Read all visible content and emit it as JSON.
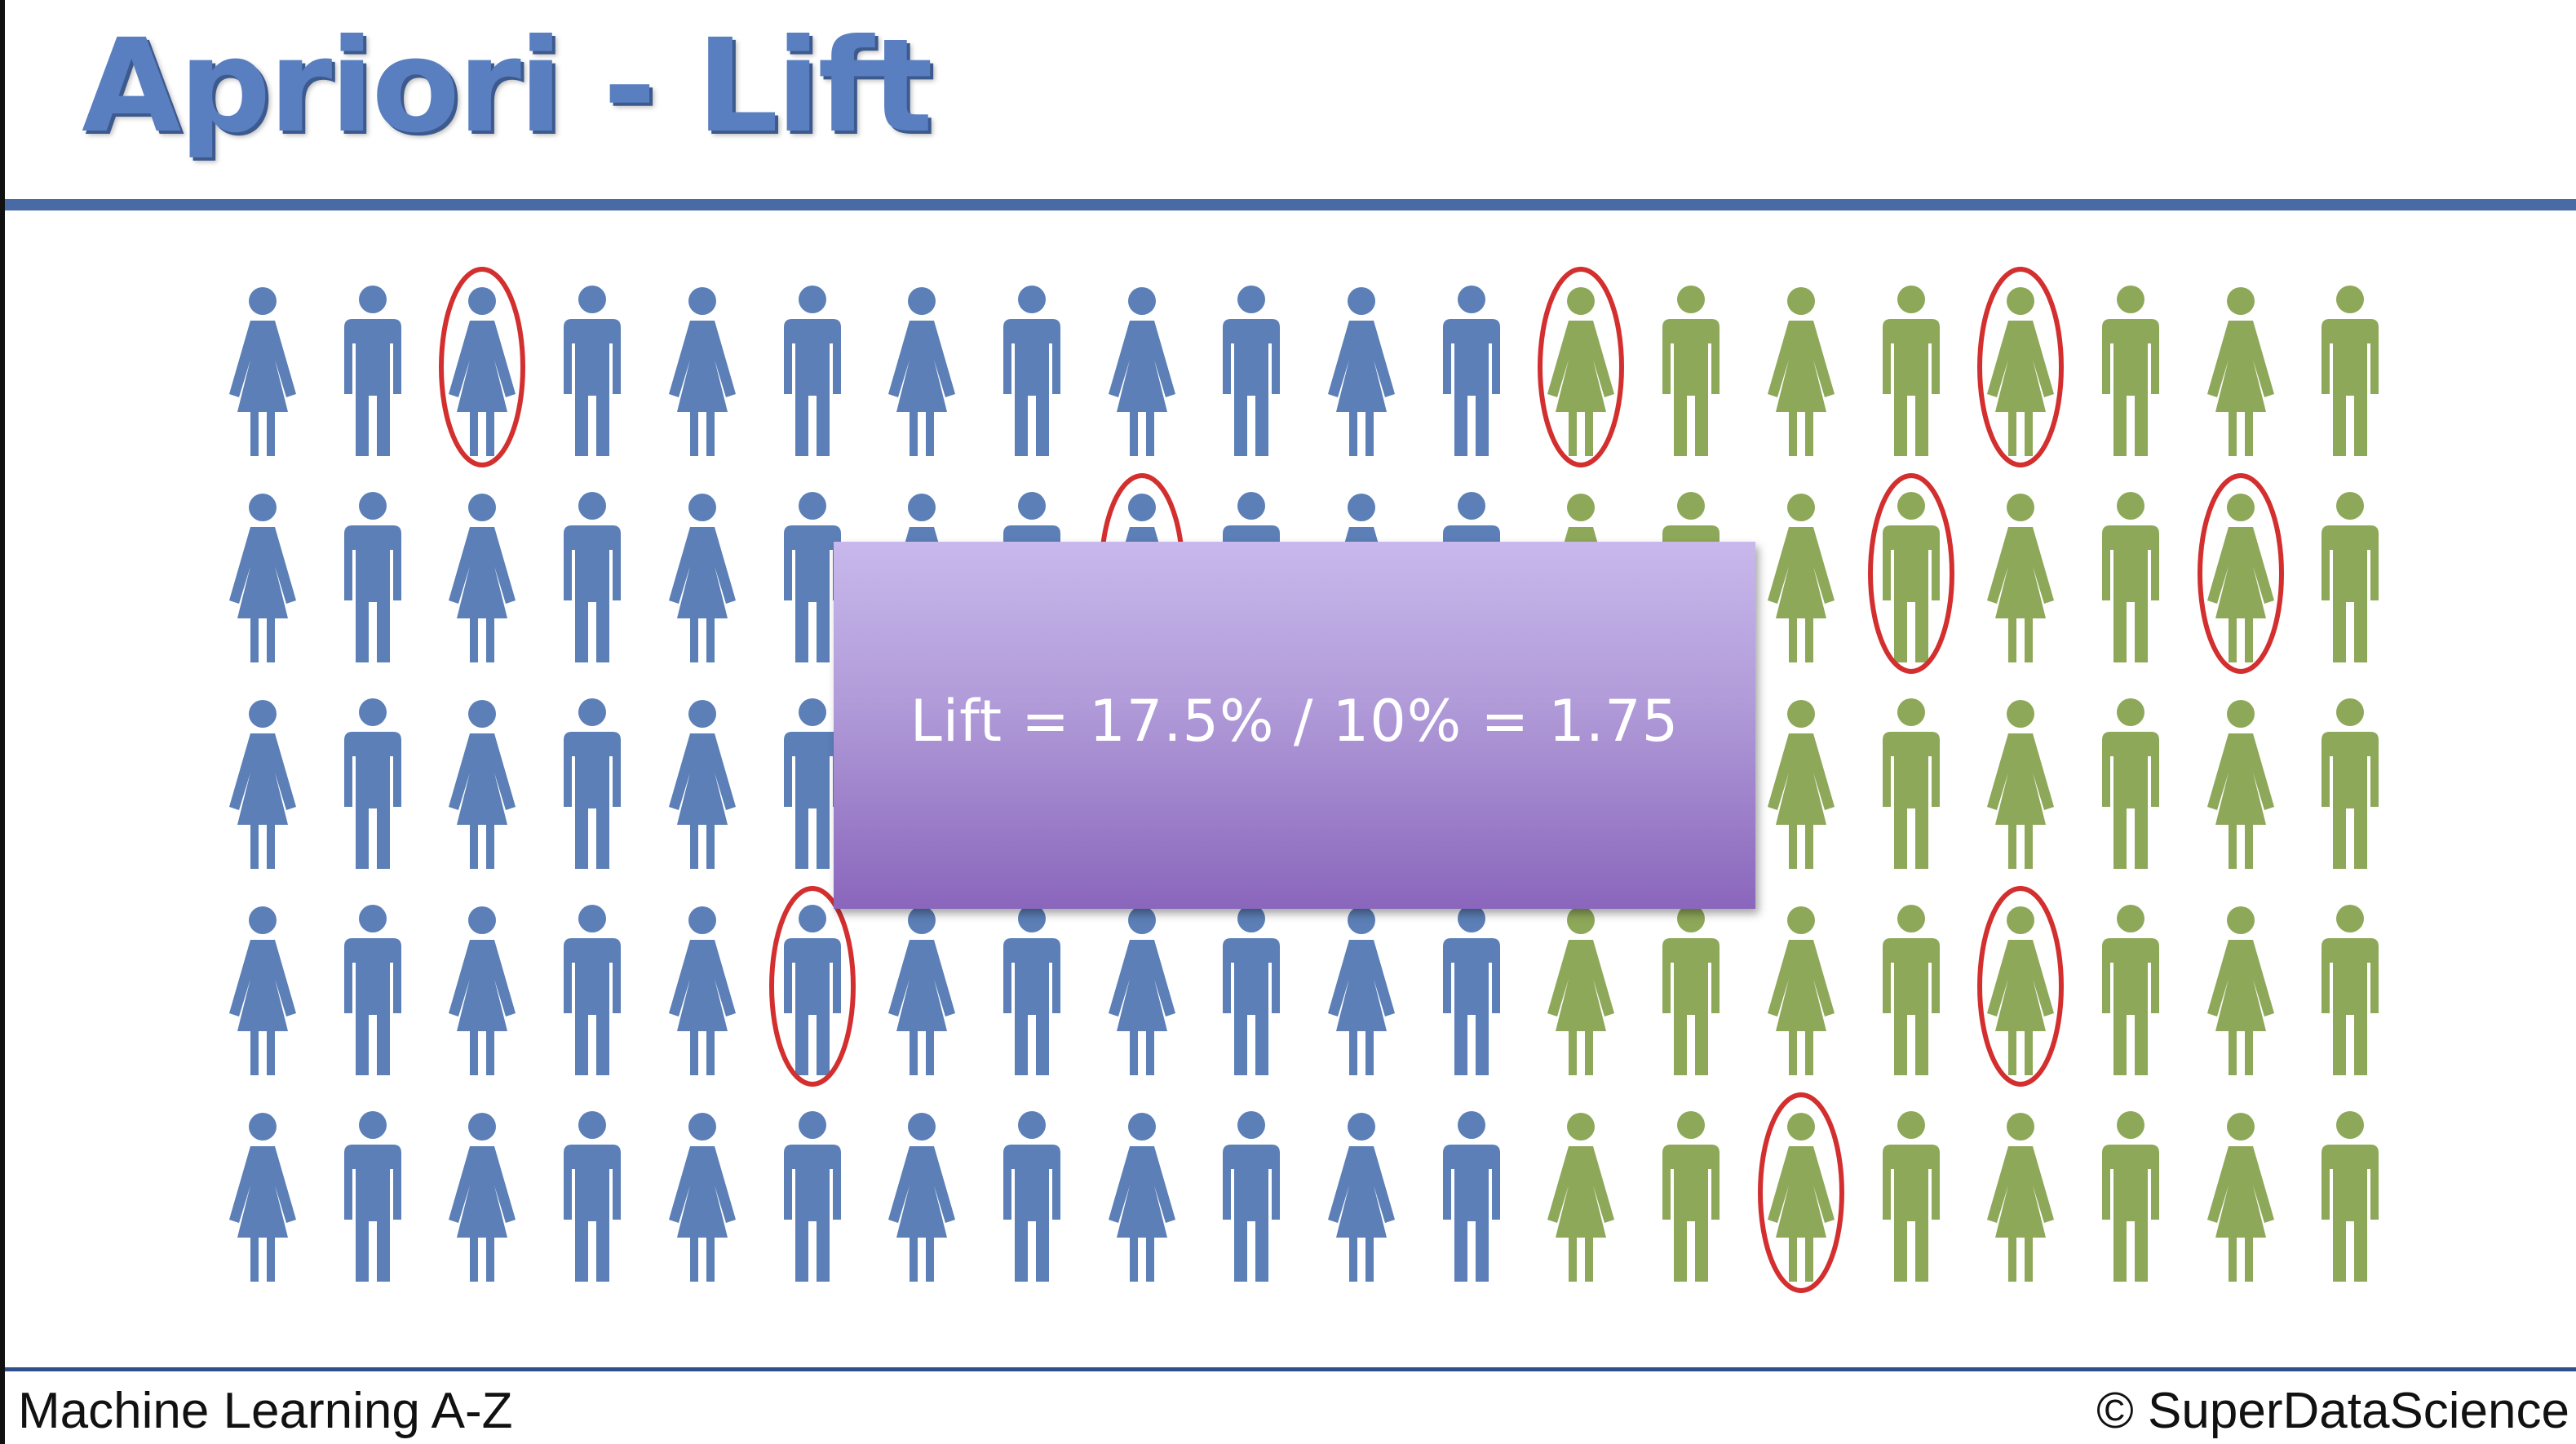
{
  "slide": {
    "title": "Apriori - Lift",
    "formula": "Lift = 17.5% / 10% = 1.75",
    "footer_left": "Machine Learning A-Z",
    "footer_right": "© SuperDataScience"
  },
  "colors": {
    "title": "#5a7fc0",
    "rule": "#4a6aa6",
    "blue_person": "#5b7fb6",
    "green_person": "#8ea859",
    "highlight_ring": "#d32f2f",
    "box_top": "#c8b8ec",
    "box_bottom": "#8a66bc"
  },
  "figures": {
    "rows": 5,
    "columns": 20,
    "pattern": [
      "female",
      "male",
      "female",
      "male",
      "female",
      "male",
      "female",
      "male",
      "female",
      "male",
      "female",
      "male",
      "female",
      "male",
      "female",
      "male",
      "female",
      "male",
      "female",
      "male"
    ],
    "color_by_column": [
      "blue",
      "blue",
      "blue",
      "blue",
      "blue",
      "blue",
      "blue",
      "blue",
      "blue",
      "blue",
      "blue",
      "blue",
      "green",
      "green",
      "green",
      "green",
      "green",
      "green",
      "green",
      "green"
    ],
    "circled": [
      {
        "row": 0,
        "col": 2
      },
      {
        "row": 0,
        "col": 12
      },
      {
        "row": 0,
        "col": 16
      },
      {
        "row": 1,
        "col": 8
      },
      {
        "row": 1,
        "col": 15
      },
      {
        "row": 1,
        "col": 18
      },
      {
        "row": 3,
        "col": 5
      },
      {
        "row": 3,
        "col": 16
      },
      {
        "row": 4,
        "col": 14
      }
    ],
    "icons": [
      "female-person-icon",
      "male-person-icon"
    ]
  }
}
